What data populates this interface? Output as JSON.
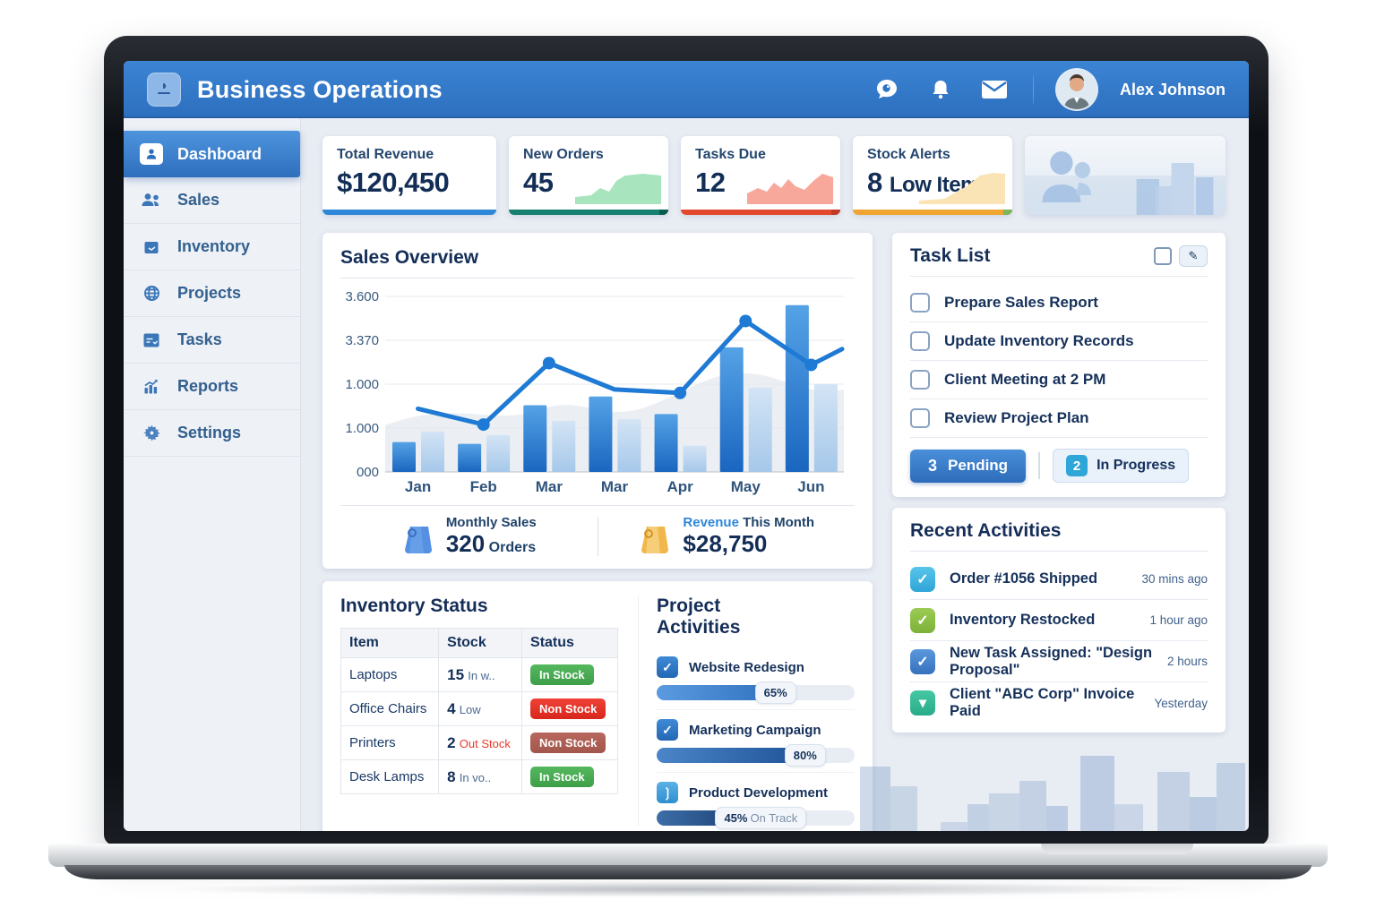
{
  "header": {
    "title": "Business Operations",
    "user_name": "Alex Johnson"
  },
  "icons": {
    "edit": "✎",
    "check": "✓",
    "chevron_down": "▾"
  },
  "sidebar": {
    "active": "Dashboard",
    "items": [
      {
        "label": "Dashboard"
      },
      {
        "label": "Sales"
      },
      {
        "label": "Inventory"
      },
      {
        "label": "Projects"
      },
      {
        "label": "Tasks"
      },
      {
        "label": "Reports"
      },
      {
        "label": "Settings"
      }
    ]
  },
  "stats": [
    {
      "label": "Total Revenue",
      "value": "$120,450",
      "accent": "#2e86d8"
    },
    {
      "label": "New Orders",
      "value": "45",
      "accent": "#15806f",
      "spark": "#a8e4bd",
      "tip": "#0c5c4e"
    },
    {
      "label": "Tasks Due",
      "value": "12",
      "accent": "#e2492f",
      "spark": "#f7a89a",
      "tip": "#c03a24"
    },
    {
      "label": "Stock Alerts",
      "value": "8",
      "value_suffix": "Low Items",
      "accent": "#f0a432",
      "spark": "#fae3b4",
      "tip": "#7cb65a"
    }
  ],
  "sales_overview": {
    "title": "Sales Overview",
    "footer": [
      {
        "label": "Monthly Sales",
        "value": "320",
        "suffix": "Orders"
      },
      {
        "label_accent": "Revenue",
        "label_rest": " This Month",
        "value": "$28,750"
      }
    ]
  },
  "chart_data": {
    "type": "bar+line",
    "title": "Sales Overview",
    "categories": [
      "Jan",
      "Feb",
      "Mar",
      "Mar",
      "Apr",
      "May",
      "Jun"
    ],
    "series": [
      {
        "name": "primary-bars",
        "color": "#2a7bd0",
        "values": [
          17,
          16,
          38,
          43,
          33,
          71,
          95
        ]
      },
      {
        "name": "secondary-bars",
        "color": "#b9d4ef",
        "values": [
          23,
          21,
          29,
          30,
          15,
          48,
          50
        ]
      }
    ],
    "line": {
      "name": "trend-line",
      "color": "#1e7ad4",
      "values": [
        36,
        27,
        62,
        47,
        45,
        86,
        61
      ],
      "end_value": 70,
      "dot_indices": [
        1,
        2,
        4,
        5,
        6
      ]
    },
    "y_tick_labels": [
      "3.600",
      "3.370",
      "1.000",
      "1.000",
      "000"
    ],
    "value_scale": "percent_of_plot_height",
    "grid": true,
    "legend": false
  },
  "task_list": {
    "title": "Task List",
    "tasks": [
      {
        "label": "Prepare Sales Report"
      },
      {
        "label": "Update Inventory Records"
      },
      {
        "label": "Client Meeting at 2 PM"
      },
      {
        "label": "Review Project Plan"
      }
    ],
    "pending": {
      "count": "3",
      "label": "Pending"
    },
    "in_progress": {
      "count": "2",
      "label": "In Progress"
    }
  },
  "inventory": {
    "title": "Inventory Status",
    "columns": [
      "Item",
      "Stock",
      "Status"
    ],
    "rows": [
      {
        "item": "Laptops",
        "stock": "15",
        "stock_note": "In w..",
        "status": "In Stock"
      },
      {
        "item": "Office Chairs",
        "stock": "4",
        "stock_note": "Low",
        "status": "Non Stock"
      },
      {
        "item": "Printers",
        "stock": "2",
        "stock_note": "Out Stock",
        "status": "Non Stock"
      },
      {
        "item": "Desk Lamps",
        "stock": "8",
        "stock_note": "In vo..",
        "status": "In Stock"
      }
    ]
  },
  "projects": {
    "title": "Project Activities",
    "items": [
      {
        "name": "Website Redesign",
        "percent": "65%",
        "label": "65%"
      },
      {
        "name": "Marketing Campaign",
        "percent": "80%",
        "label": "80%"
      },
      {
        "name": "Product Development",
        "percent": "45%",
        "label": "45%",
        "note": "On Track"
      }
    ]
  },
  "activities": {
    "title": "Recent Activities",
    "items": [
      {
        "text": "Order #1056 Shipped",
        "time": "30 mins ago"
      },
      {
        "text": "Inventory Restocked",
        "time": "1 hour ago"
      },
      {
        "text": "New Task Assigned: \"Design Proposal\"",
        "time": "2 hours"
      },
      {
        "text": "Client \"ABC Corp\" Invoice Paid",
        "time": "Yesterday"
      }
    ]
  }
}
